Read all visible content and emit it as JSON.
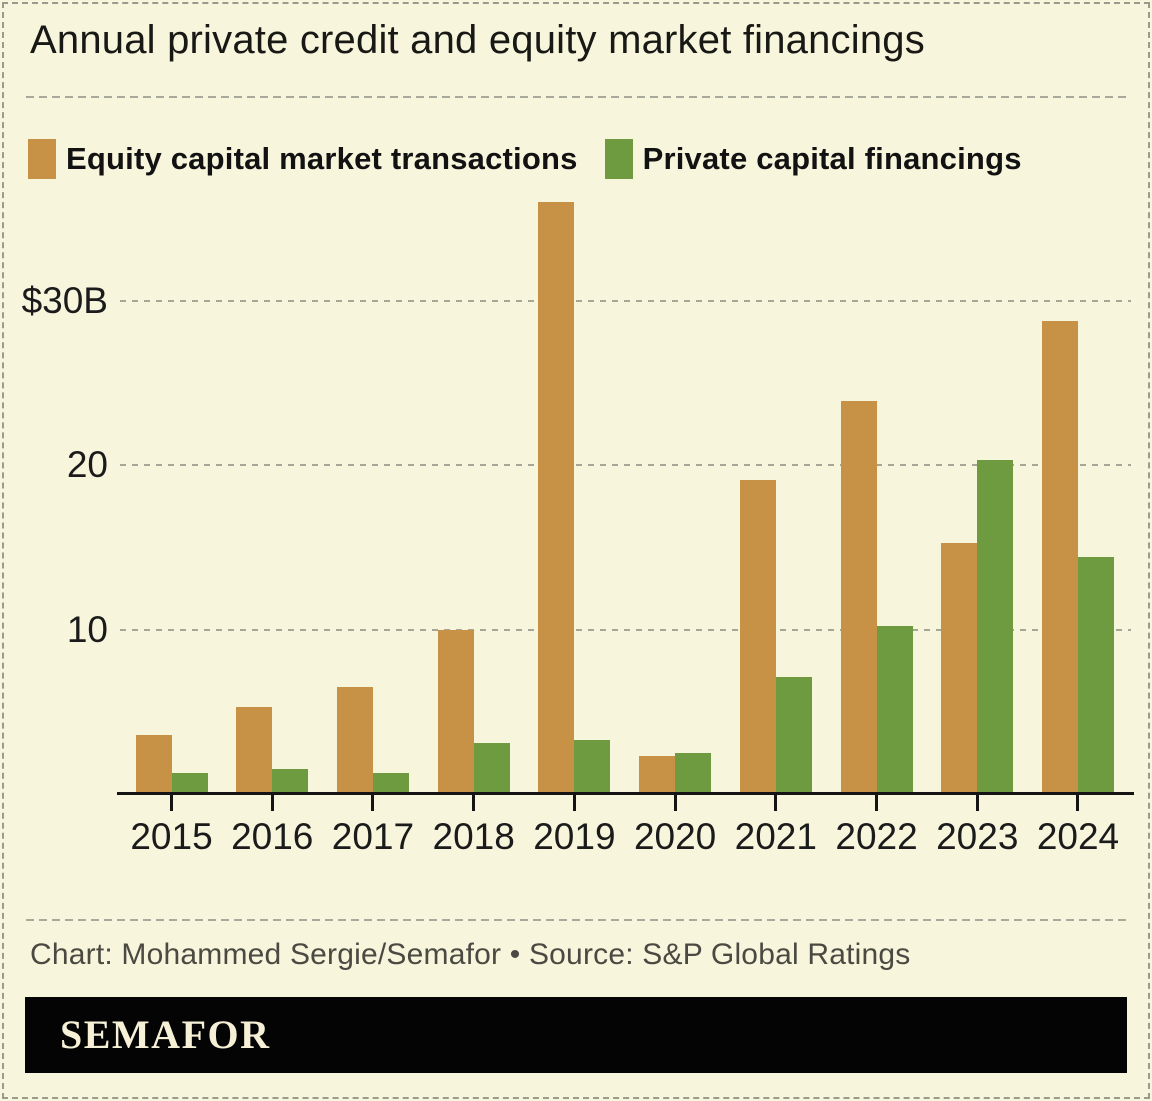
{
  "title": "Annual private credit and equity market financings",
  "legend": [
    {
      "label": "Equity capital market transactions",
      "color": "#c79245"
    },
    {
      "label": "Private capital financings",
      "color": "#6f9b40"
    }
  ],
  "chart_data": {
    "type": "bar",
    "title": "Annual private credit and equity market financings",
    "categories": [
      "2015",
      "2016",
      "2017",
      "2018",
      "2019",
      "2020",
      "2021",
      "2022",
      "2023",
      "2024"
    ],
    "series": [
      {
        "name": "Equity capital market transactions",
        "color": "#c79245",
        "values": [
          3.6,
          5.3,
          6.5,
          10,
          36,
          2.3,
          19.1,
          23.9,
          15.3,
          28.8
        ]
      },
      {
        "name": "Private capital financings",
        "color": "#6f9b40",
        "values": [
          1.3,
          1.5,
          1.3,
          3.1,
          3.3,
          2.5,
          7.1,
          10.2,
          20.3,
          14.4
        ]
      }
    ],
    "unit": "billions USD",
    "y_ticks": [
      {
        "value": 10,
        "label": "10"
      },
      {
        "value": 20,
        "label": "20"
      },
      {
        "value": 30,
        "label": "$30B"
      }
    ],
    "ylim": [
      0,
      36.75
    ],
    "grid": "horizontal dashed",
    "legend_position": "top"
  },
  "footer": {
    "credit": "Chart: Mohammed Sergie/Semafor • Source: S&P Global Ratings",
    "brand": "SEMAFOR"
  },
  "colors": {
    "background": "#f8f5dd",
    "equity_bar": "#c79245",
    "private_bar": "#6f9b40",
    "axis": "#141414",
    "grid_dash": "#a6a697",
    "border_dash": "#9a9a8d",
    "credit_text": "#4a4a42",
    "brand_bar": "#040404",
    "brand_text": "#f5f0d6"
  }
}
